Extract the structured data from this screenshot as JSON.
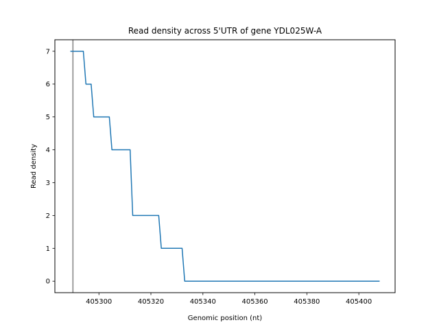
{
  "chart_data": {
    "type": "line",
    "title": "Read density across 5'UTR of gene YDL025W-A",
    "xlabel": "Genomic position (nt)",
    "ylabel": "Read density",
    "xlim": [
      405283.05,
      405413.95
    ],
    "ylim": [
      -0.35,
      7.35
    ],
    "xticks": [
      405300,
      405320,
      405340,
      405360,
      405380,
      405400
    ],
    "yticks": [
      0,
      1,
      2,
      3,
      4,
      5,
      6,
      7
    ],
    "grid": false,
    "legend": "none",
    "vline": {
      "x": 405290,
      "color": "#808080"
    },
    "series": [
      {
        "color": "#1f77b4",
        "x": [
          405289,
          405294,
          405295,
          405297,
          405298,
          405304,
          405305,
          405312,
          405313,
          405323,
          405324,
          405332,
          405333,
          405408
        ],
        "y": [
          7,
          7,
          6,
          6,
          5,
          5,
          4,
          4,
          2,
          2,
          1,
          1,
          0,
          0
        ]
      }
    ]
  }
}
